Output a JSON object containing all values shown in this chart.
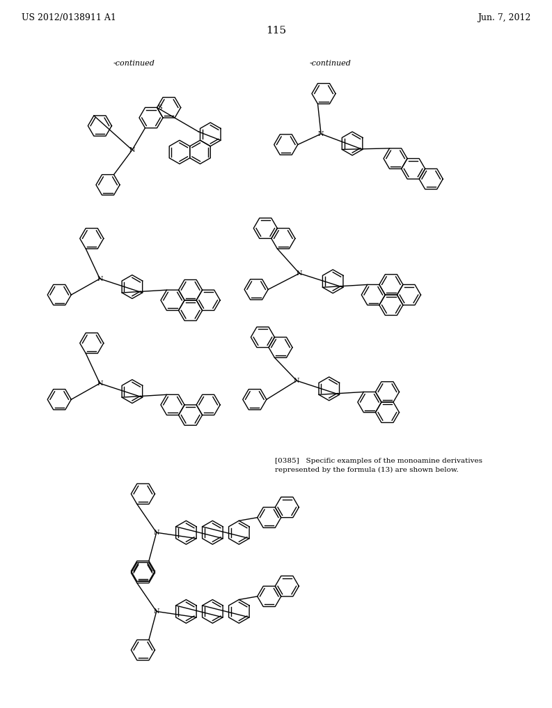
{
  "page_header_left": "US 2012/0138911 A1",
  "page_header_right": "Jun. 7, 2012",
  "page_number": "115",
  "continued_label_1": "-continued",
  "continued_label_2": "-continued",
  "annotation_text_1": "[0385]   Specific examples of the monoamine derivatives",
  "annotation_text_2": "represented by the formula (13) are shown below.",
  "bg_color": "#ffffff",
  "line_color": "#000000",
  "font_size_header": 9,
  "font_size_label": 8,
  "font_size_annotation": 7.5
}
